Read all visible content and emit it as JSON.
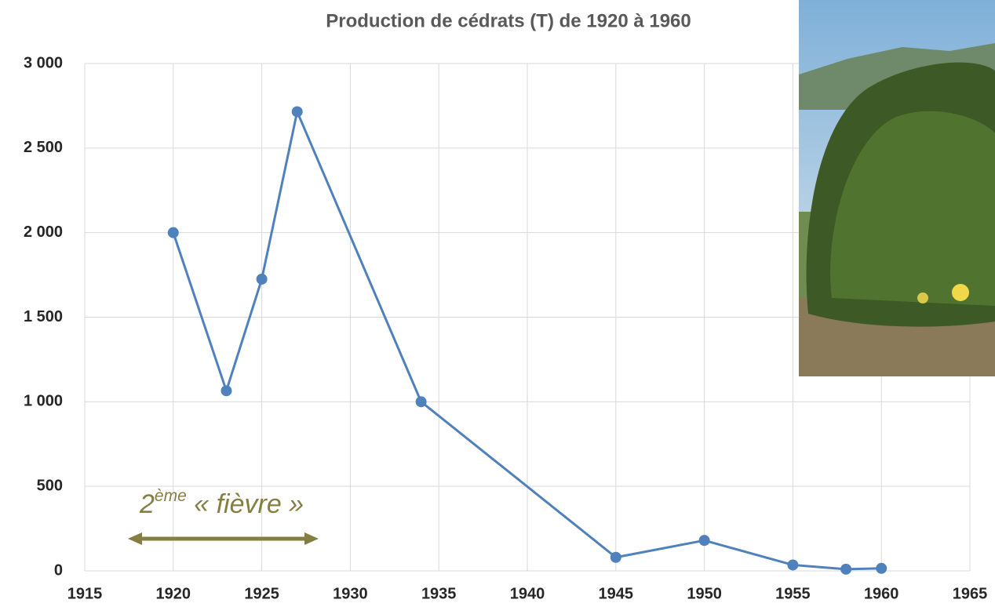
{
  "chart_data": {
    "type": "line",
    "title": "Production de cédrats (T) de 1920 à 1960",
    "x": [
      1920,
      1923,
      1925,
      1927,
      1934,
      1945,
      1950,
      1955,
      1958,
      1960
    ],
    "values": [
      2000,
      1065,
      1725,
      2715,
      1000,
      80,
      180,
      35,
      10,
      15
    ],
    "color": "#4f81bd",
    "xlim": [
      1915,
      1965
    ],
    "xticks": [
      1915,
      1920,
      1925,
      1930,
      1935,
      1940,
      1945,
      1950,
      1955,
      1960,
      1965
    ],
    "ylim": [
      0,
      3000
    ],
    "yticks": [
      0,
      500,
      {
        "value": 1000,
        "label": "1 000"
      },
      {
        "value": 1500,
        "label": "1 500"
      },
      {
        "value": 2000,
        "label": "2 000"
      },
      {
        "value": 2500,
        "label": "2 500"
      },
      {
        "value": 3000,
        "label": "3 000"
      }
    ],
    "grid": true,
    "annotation": {
      "base": "2",
      "sup": "ème",
      "rest": " « fièvre »",
      "color": "#857e43"
    }
  }
}
